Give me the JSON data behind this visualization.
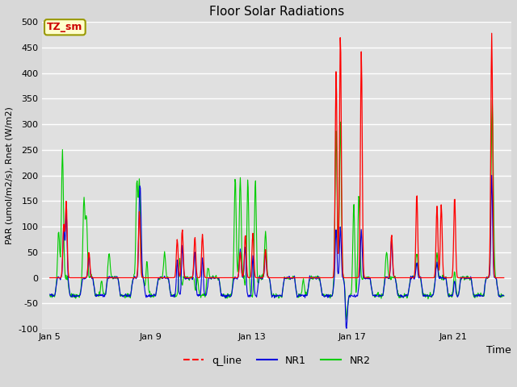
{
  "title": "Floor Solar Radiations",
  "xlabel": "Time",
  "ylabel": "PAR (umol/m2/s), Rnet (W/m2)",
  "ylim": [
    -100,
    500
  ],
  "yticks": [
    -100,
    -50,
    0,
    50,
    100,
    150,
    200,
    250,
    300,
    350,
    400,
    450,
    500
  ],
  "xlim_start": 4.7,
  "xlim_end": 23.3,
  "xtick_positions": [
    5,
    9,
    13,
    17,
    21
  ],
  "xtick_labels": [
    "Jan 5",
    "Jan 9",
    "Jan 13",
    "Jan 17",
    "Jan 21"
  ],
  "background_color": "#d8d8d8",
  "plot_bg_color": "#e0e0e0",
  "grid_color": "#ffffff",
  "title_fontsize": 11,
  "annotation_label": "TZ_sm",
  "annotation_bg": "#ffffcc",
  "annotation_border": "#999900",
  "annotation_text_color": "#cc0000",
  "line_colors": {
    "q_line": "#ff0000",
    "NR1": "#0000dd",
    "NR2": "#00cc00"
  },
  "legend_labels": [
    "q_line",
    "NR1",
    "NR2"
  ],
  "legend_colors": [
    "#ff0000",
    "#0000dd",
    "#00cc00"
  ],
  "figsize": [
    6.4,
    4.8
  ],
  "dpi": 100
}
